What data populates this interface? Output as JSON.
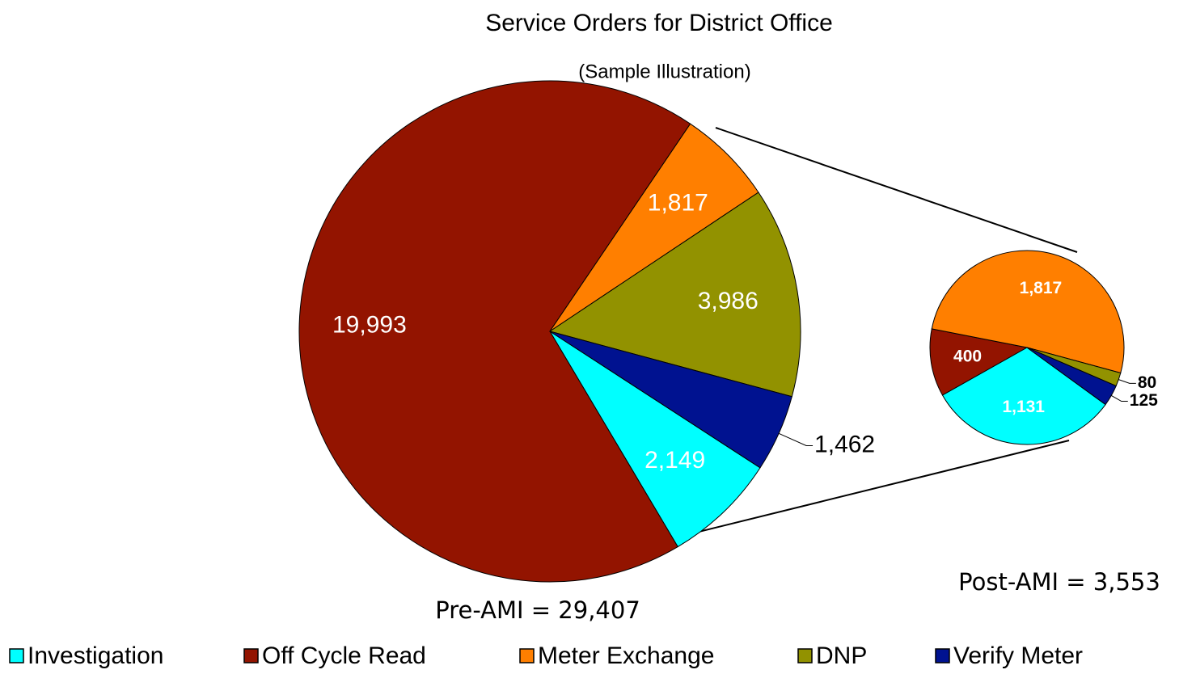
{
  "chart_data": {
    "type": "pie",
    "title": "Service Orders for District Office",
    "subtitle": "(Sample Illustration)",
    "categories": [
      "Investigation",
      "Off Cycle Read",
      "Meter Exchange",
      "DNP",
      "Verify Meter"
    ],
    "colors": [
      "#00ffff",
      "#931400",
      "#ff7f00",
      "#929200",
      "#001290"
    ],
    "pies": [
      {
        "caption": "Pre-AMI = 29,407",
        "values": [
          2149,
          19993,
          1817,
          3986,
          1462
        ],
        "value_labels": [
          "2,149",
          "19,993",
          "1,817",
          "3,986",
          "1,462"
        ]
      },
      {
        "caption": "Post-AMI = 3,553",
        "values": [
          1131,
          400,
          1817,
          80,
          125
        ],
        "value_labels": [
          "1,131",
          "400",
          "1,817",
          "80",
          "125"
        ]
      }
    ]
  }
}
